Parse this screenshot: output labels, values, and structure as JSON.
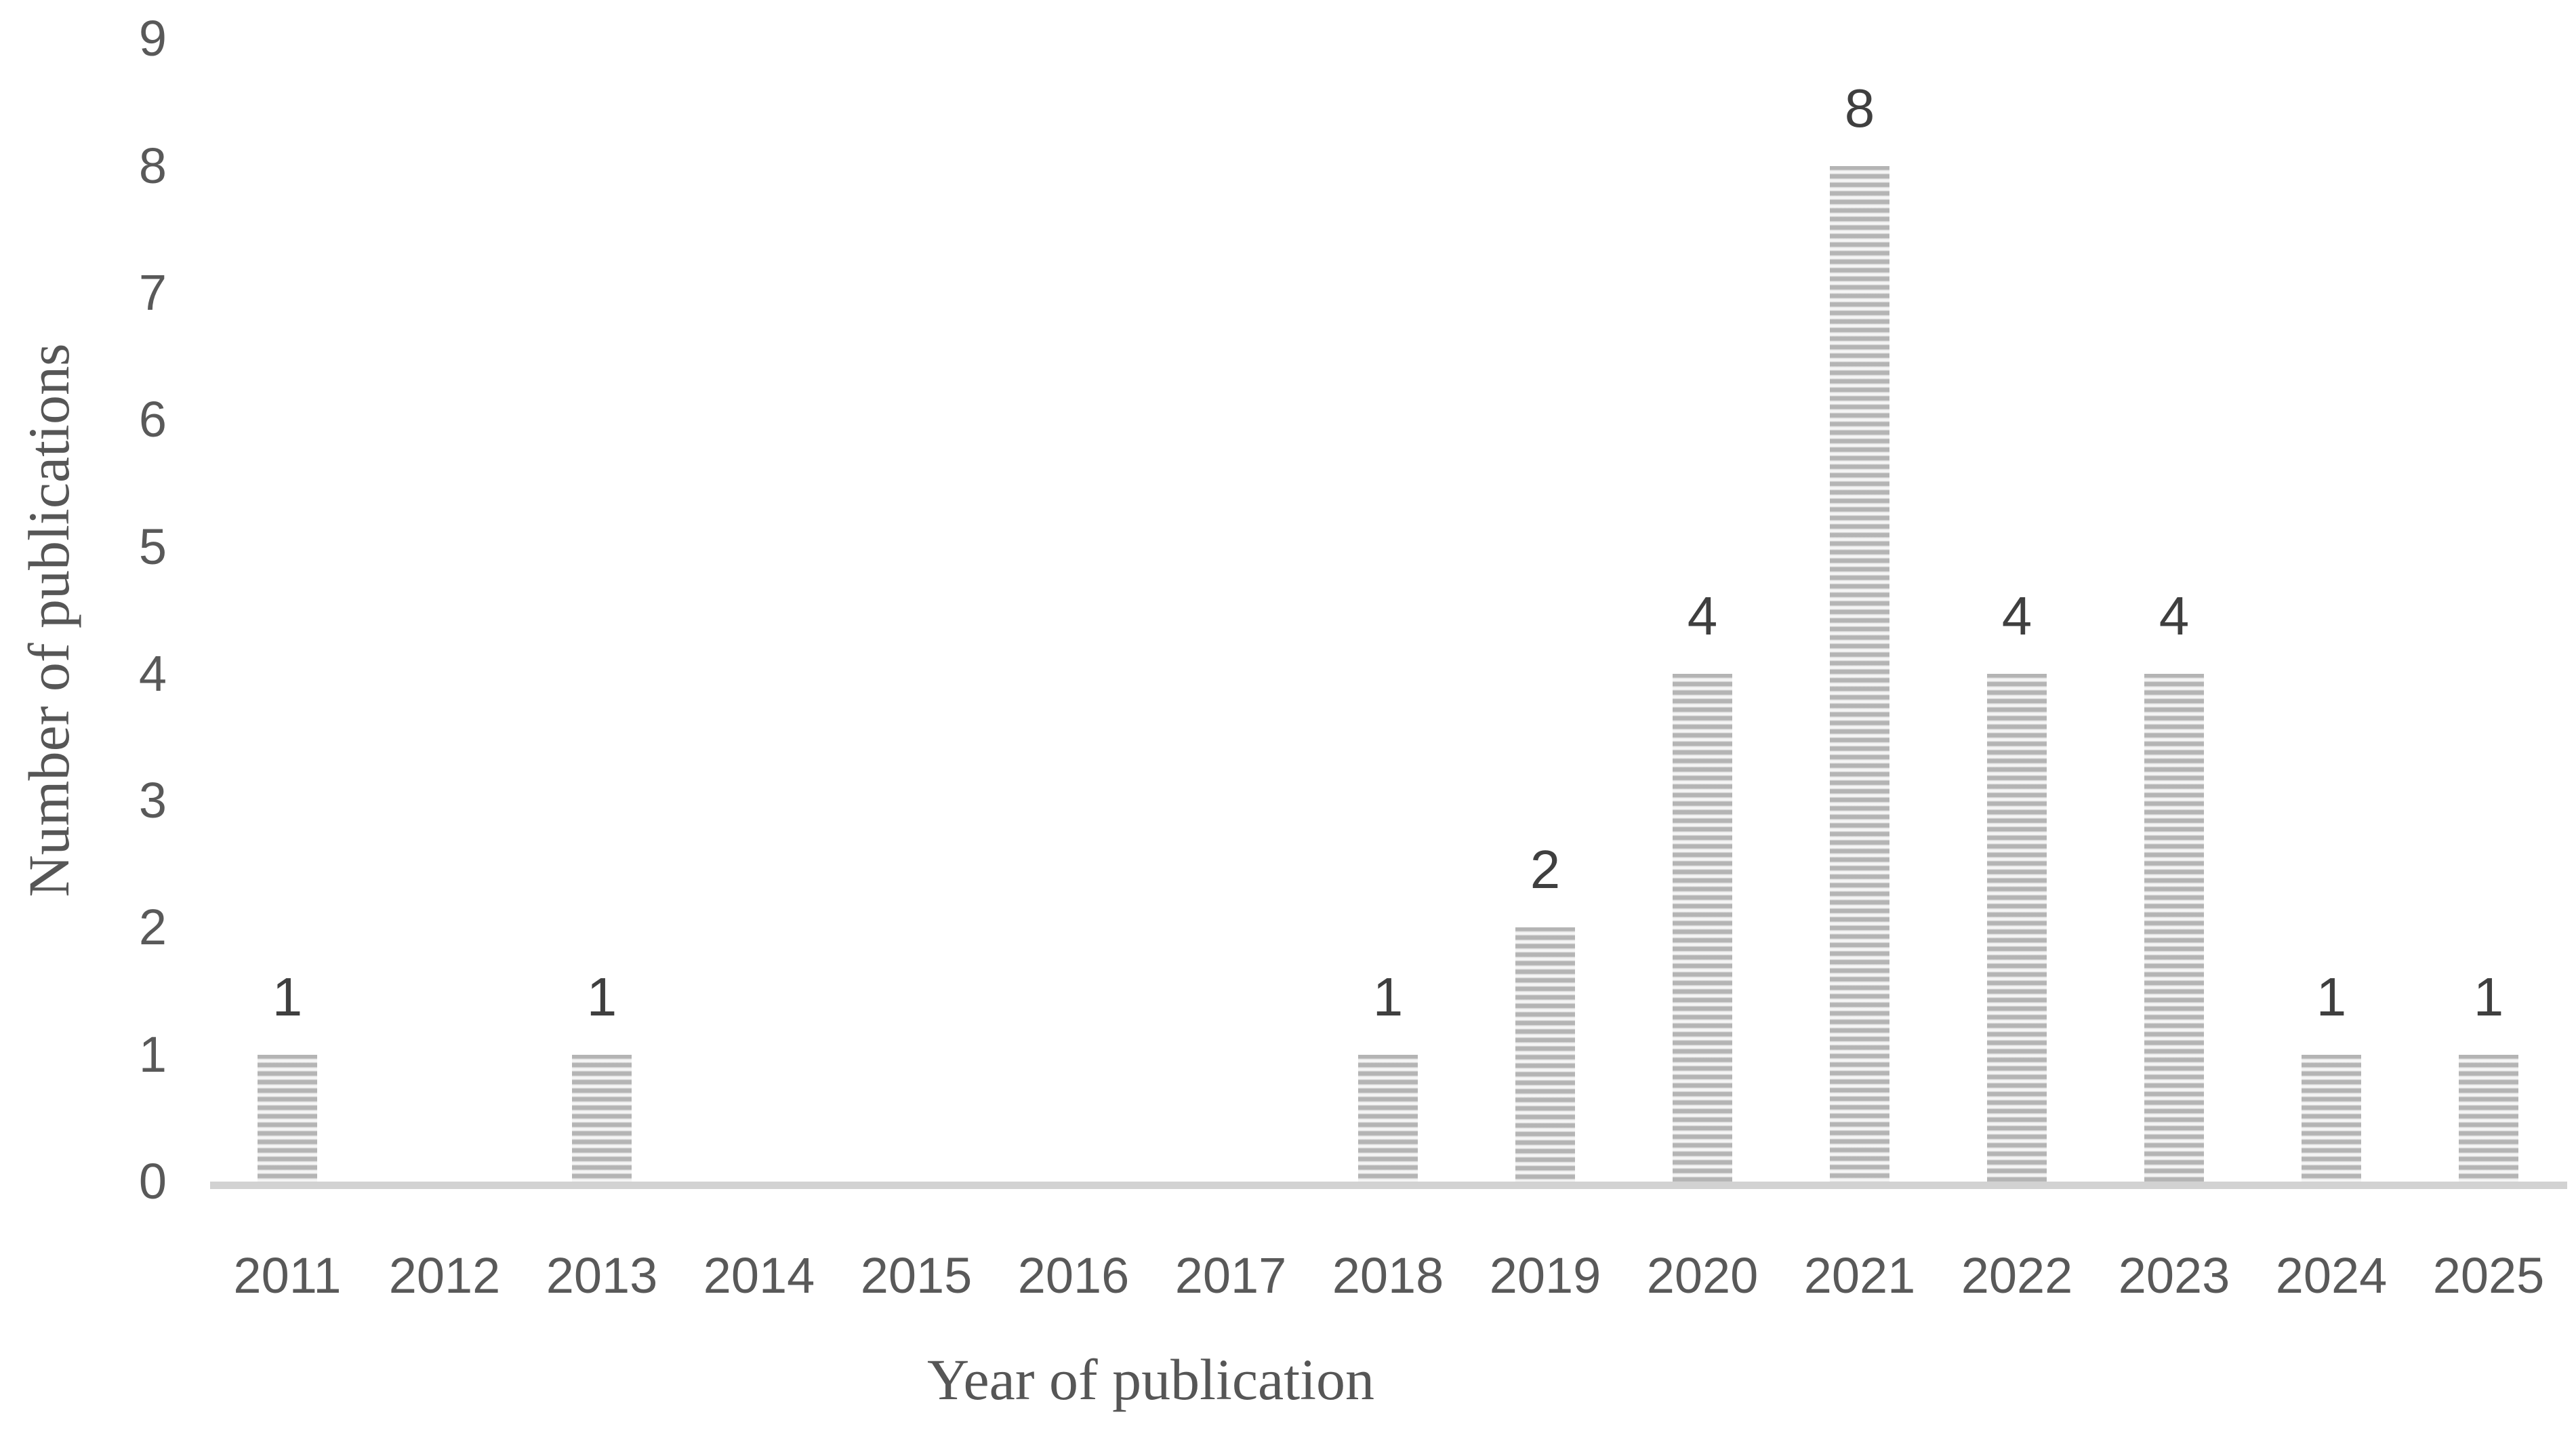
{
  "chart_data": {
    "type": "bar",
    "categories": [
      "2011",
      "2012",
      "2013",
      "2014",
      "2015",
      "2016",
      "2017",
      "2018",
      "2019",
      "2020",
      "2021",
      "2022",
      "2023",
      "2024",
      "2025"
    ],
    "values": [
      1,
      0,
      1,
      0,
      0,
      0,
      0,
      1,
      2,
      4,
      8,
      4,
      4,
      1,
      1
    ],
    "data_labels": [
      "1",
      "",
      "1",
      "",
      "",
      "",
      "",
      "1",
      "2",
      "4",
      "8",
      "4",
      "4",
      "1",
      "1"
    ],
    "xlabel": "Year of publication",
    "ylabel": "Number of publications",
    "y_ticks": [
      0,
      1,
      2,
      3,
      4,
      5,
      6,
      7,
      8,
      9
    ],
    "ylim": [
      0,
      9
    ],
    "grid": "off",
    "legend": "none",
    "bar_pattern": "horizontal-stripes",
    "bar_stripe_color": "#b4b4b4",
    "bar_stripe_background": "#f5f5f5",
    "axis_line_color": "#d2d2d2",
    "tick_label_color": "#595959",
    "data_label_color": "#3f3f3f",
    "axis_title_color": "#565656"
  }
}
